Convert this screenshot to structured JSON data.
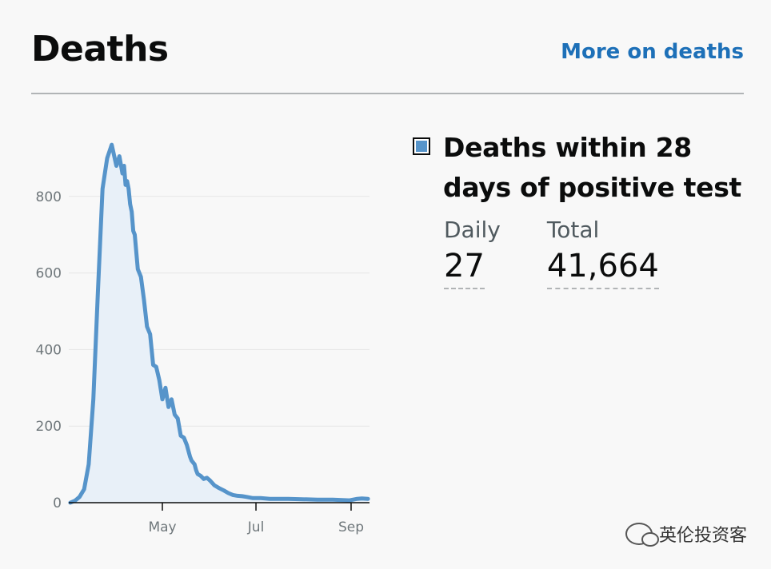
{
  "header": {
    "title": "Deaths",
    "more_link": "More on deaths"
  },
  "legend": {
    "title_line1": "Deaths within 28",
    "title_line2": "days of positive test",
    "color": "#5694ca"
  },
  "stats": {
    "daily_label": "Daily",
    "daily_value": "27",
    "total_label": "Total",
    "total_value": "41,664"
  },
  "watermark": "英伦投资客",
  "chart_data": {
    "type": "area",
    "color": "#5694ca",
    "fill": "#e8f0f8",
    "ylim": [
      0,
      1000
    ],
    "yticks": [
      0,
      200,
      400,
      600,
      800
    ],
    "ytick_labels": [
      "0",
      "200",
      "400",
      "600",
      "800"
    ],
    "xticks": [
      "2020-05-01",
      "2020-07-01",
      "2020-09-01"
    ],
    "xtick_labels": [
      "May",
      "Jul",
      "Sep"
    ],
    "grid": true,
    "x": [
      "2020-03-02",
      "2020-03-05",
      "2020-03-08",
      "2020-03-11",
      "2020-03-14",
      "2020-03-17",
      "2020-03-20",
      "2020-03-23",
      "2020-03-26",
      "2020-03-29",
      "2020-04-01",
      "2020-04-03",
      "2020-04-05",
      "2020-04-06",
      "2020-04-07",
      "2020-04-08",
      "2020-04-09",
      "2020-04-10",
      "2020-04-11",
      "2020-04-12",
      "2020-04-13",
      "2020-04-15",
      "2020-04-17",
      "2020-04-19",
      "2020-04-21",
      "2020-04-23",
      "2020-04-25",
      "2020-04-27",
      "2020-04-29",
      "2020-05-01",
      "2020-05-03",
      "2020-05-05",
      "2020-05-07",
      "2020-05-09",
      "2020-05-11",
      "2020-05-13",
      "2020-05-15",
      "2020-05-17",
      "2020-05-19",
      "2020-05-20",
      "2020-05-21",
      "2020-05-22",
      "2020-05-23",
      "2020-05-24",
      "2020-05-26",
      "2020-05-28",
      "2020-05-30",
      "2020-06-01",
      "2020-06-04",
      "2020-06-07",
      "2020-06-10",
      "2020-06-13",
      "2020-06-16",
      "2020-06-19",
      "2020-06-22",
      "2020-06-25",
      "2020-06-29",
      "2020-07-04",
      "2020-07-10",
      "2020-07-16",
      "2020-07-22",
      "2020-07-31",
      "2020-08-10",
      "2020-08-20",
      "2020-08-31",
      "2020-09-05",
      "2020-09-08",
      "2020-09-12"
    ],
    "values": [
      0,
      5,
      15,
      35,
      100,
      270,
      550,
      820,
      900,
      935,
      880,
      905,
      860,
      880,
      830,
      840,
      820,
      780,
      760,
      710,
      700,
      610,
      590,
      530,
      460,
      440,
      360,
      355,
      320,
      270,
      300,
      250,
      270,
      230,
      220,
      175,
      170,
      150,
      120,
      110,
      105,
      100,
      85,
      75,
      70,
      62,
      65,
      58,
      45,
      38,
      32,
      25,
      20,
      18,
      17,
      15,
      12,
      12,
      10,
      10,
      10,
      9,
      8,
      8,
      6,
      10,
      11,
      10
    ]
  }
}
